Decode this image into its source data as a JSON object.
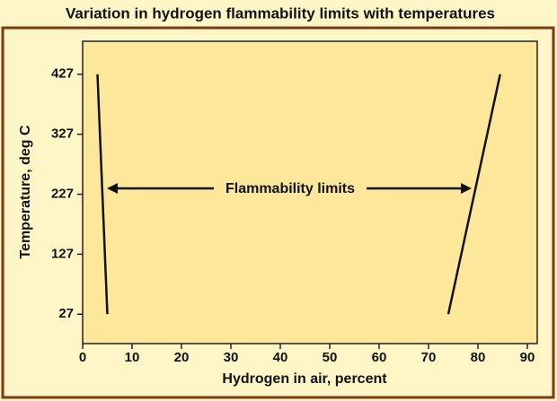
{
  "chart_data": {
    "type": "line",
    "title": "Variation in hydrogen flammability limits with temperatures",
    "x_label": "Hydrogen in air, percent",
    "y_label": "Temperature, deg C",
    "annotation": "Flammability limits",
    "series": [
      {
        "color": "#111111",
        "x": [
          3,
          5
        ],
        "values": [
          427,
          27
        ]
      },
      {
        "color": "#111111",
        "x": [
          84.5,
          74
        ],
        "values": [
          427,
          27
        ]
      }
    ],
    "xlim": [
      0,
      92
    ],
    "ylim": [
      -22,
      482
    ],
    "xticks": [
      0,
      10,
      20,
      30,
      40,
      50,
      60,
      70,
      80,
      90
    ],
    "yticks": [
      27,
      127,
      227,
      327,
      427
    ],
    "grid": false
  }
}
